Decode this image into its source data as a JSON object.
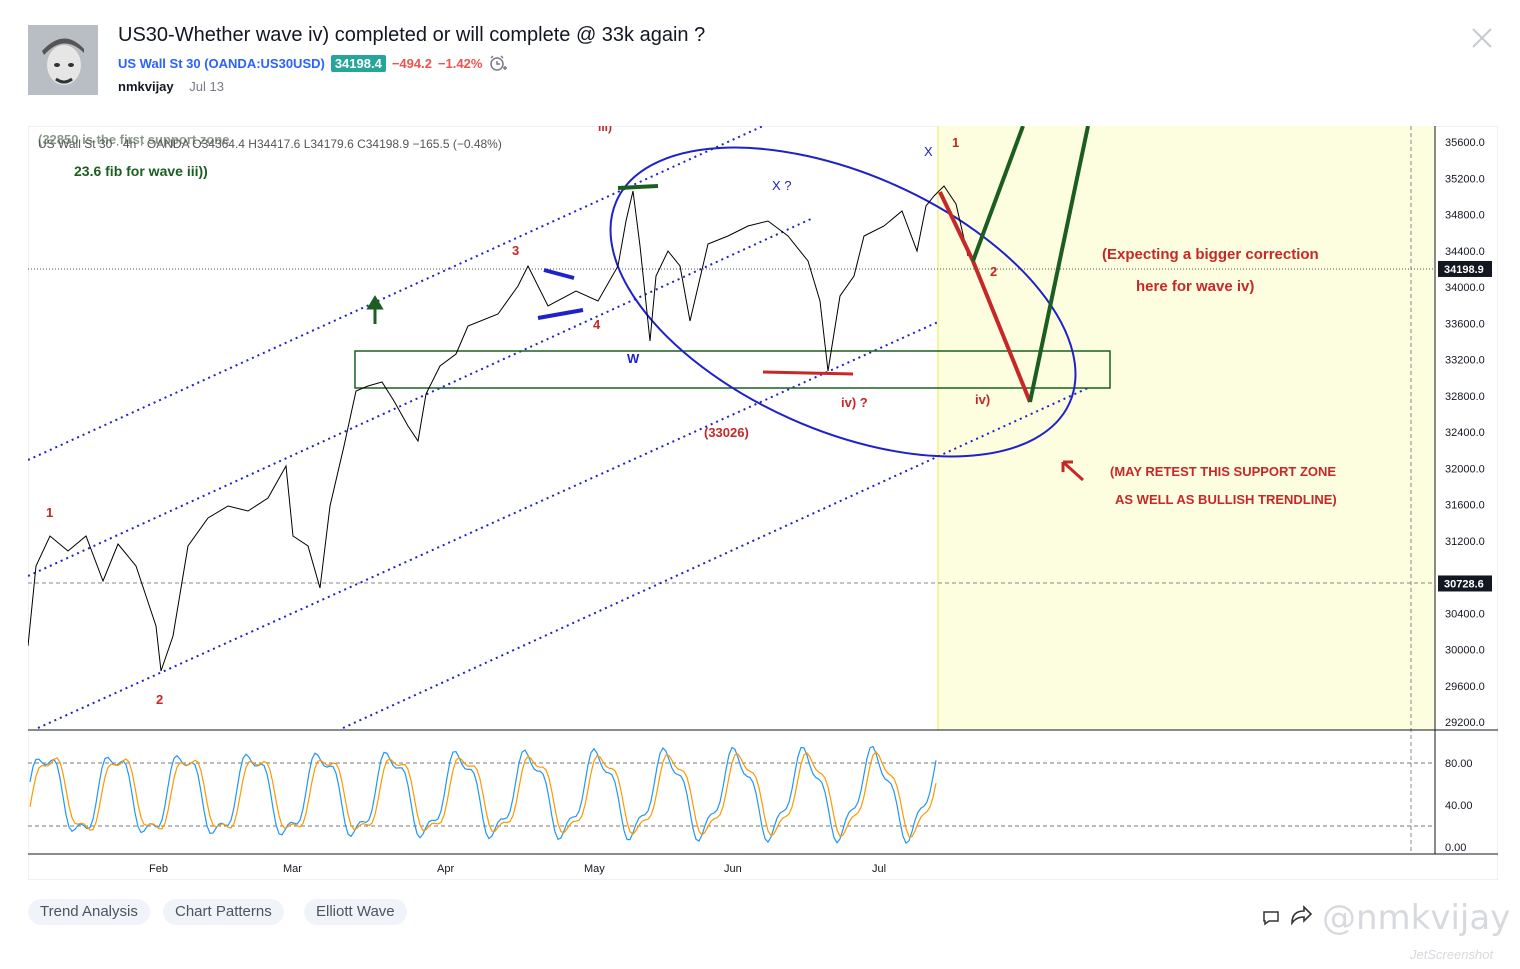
{
  "header": {
    "title": "US30-Whether wave iv) completed or will complete @ 33k again ?",
    "symbol_name": "US Wall St 30 (OANDA:US30USD)",
    "price": "34198.4",
    "change": "−494.2",
    "change_pct": "−1.42%",
    "author": "nmkvijay",
    "date": "Jul 13"
  },
  "chart": {
    "legend": "US Wall St 30 · 4h · OANDA O34364.4 H34417.6 L34179.6 C34198.9 −165.5 (−0.48%)",
    "price_ticks": [
      "35600.0",
      "35200.0",
      "34800.0",
      "34400.0",
      "34000.0",
      "33600.0",
      "33200.0",
      "32800.0",
      "32400.0",
      "32000.0",
      "31600.0",
      "31200.0",
      "30400.0",
      "30000.0",
      "29600.0",
      "29200.0"
    ],
    "current_price_label": "34198.9",
    "level_label": "30728.6",
    "osc_ticks": [
      "80.00",
      "40.00",
      "0.00"
    ],
    "months": [
      "Feb",
      "Mar",
      "Apr",
      "May",
      "Jun",
      "Jul"
    ],
    "annotations": {
      "support_note": "(32850 is the first support zone",
      "fib_note": "23.6 fib for wave iii))",
      "iii": "iii)",
      "correction_1": "(Expecting a bigger correction",
      "correction_2": "here for wave iv)",
      "retest_1": "(MAY RETEST THIS SUPPORT ZONE",
      "retest_2": "AS WELL AS BULLISH TRENDLINE)",
      "lvl_33026": "(33026)",
      "iv_q": "iv) ?",
      "iv": "iv)",
      "w": "W",
      "xq": "X ?",
      "x": "X",
      "n1": "1",
      "n2": "2",
      "n3": "3",
      "n4": "4"
    }
  },
  "tags": [
    "Trend Analysis",
    "Chart Patterns",
    "Elliott Wave"
  ],
  "watermark": "@nmkvijay",
  "watermark_small": "JetScreenshot",
  "colors": {
    "accent": "#2962ff",
    "up": "#26a69a",
    "down": "#ef5350",
    "wave_red": "#c62828",
    "wave_green": "#1b5e20",
    "wave_blue": "#1e22c8",
    "future_bg": "#fdfde0"
  }
}
